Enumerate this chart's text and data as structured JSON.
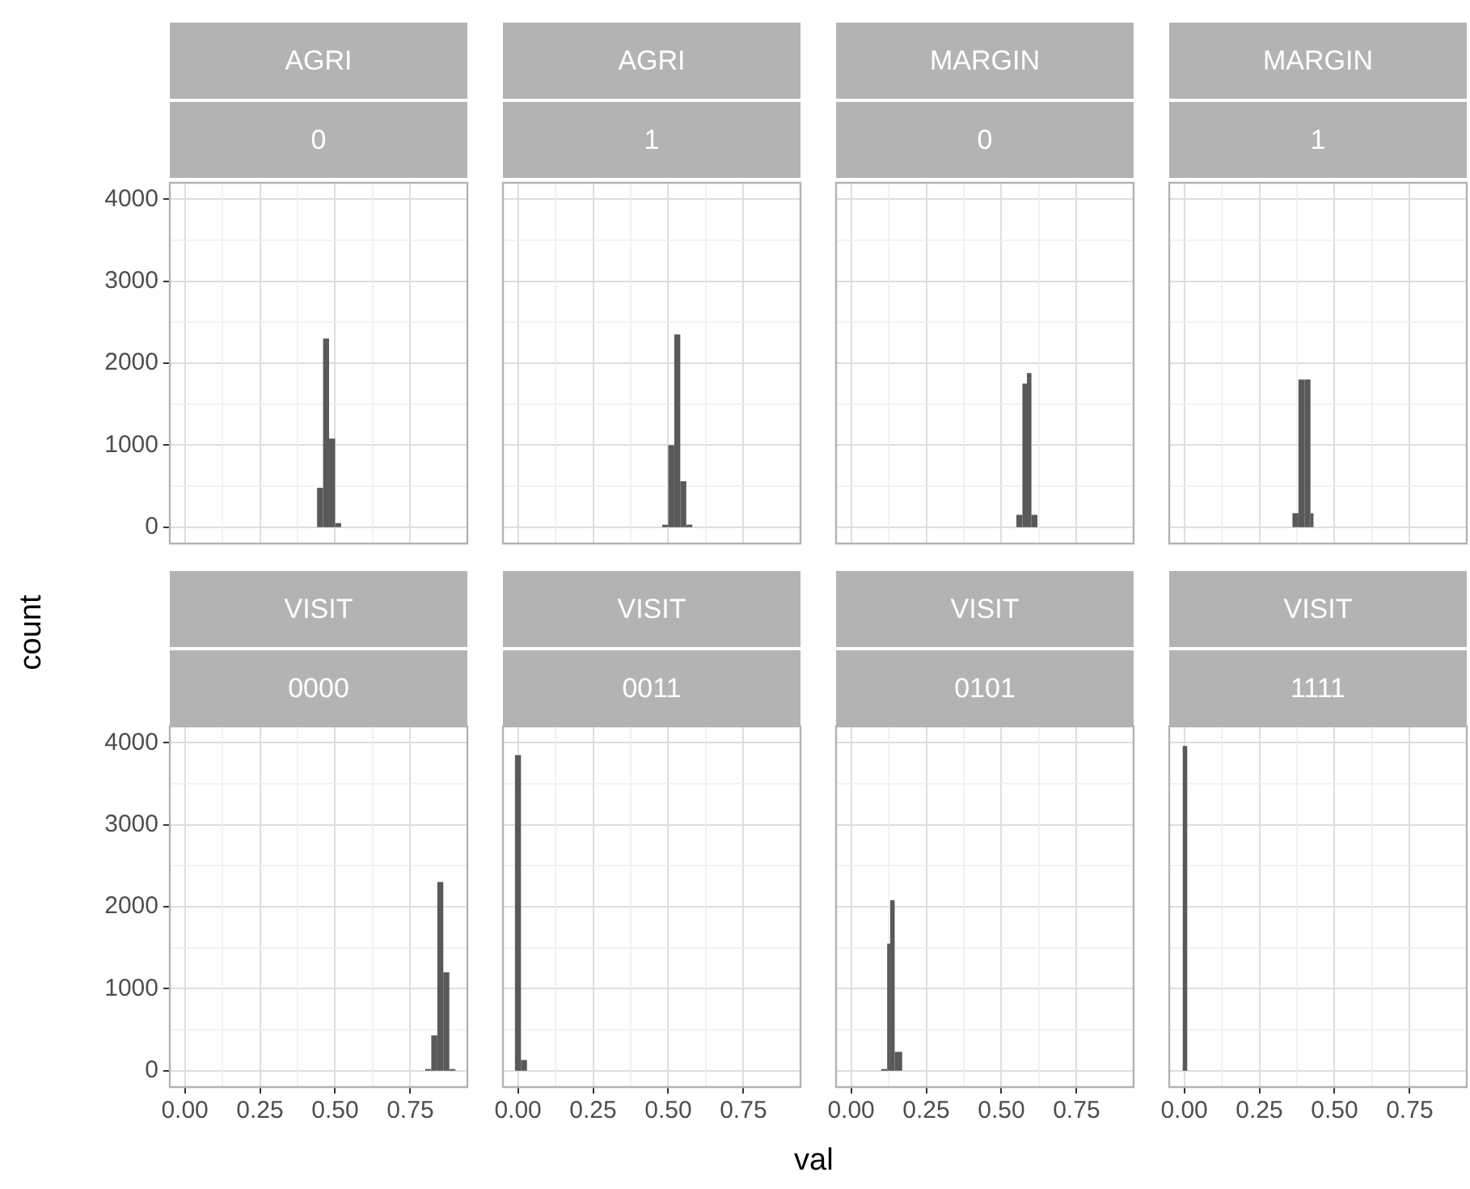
{
  "chart_data": [
    {
      "type": "histogram",
      "title": "AGRI",
      "subtitle": "0",
      "ylabel": "count",
      "bins": [
        0.44,
        0.46,
        0.48,
        0.5,
        0.52
      ],
      "values": [
        480,
        2300,
        1080,
        50
      ],
      "color": "#595959",
      "xlim": [
        -0.05,
        0.94
      ],
      "ylim": [
        -200,
        4200
      ],
      "xticks": [
        0,
        0.25,
        0.5,
        0.75
      ],
      "yticks": [
        0,
        1000,
        2000,
        3000,
        4000
      ],
      "grid": true,
      "tick_labels": "y"
    },
    {
      "type": "histogram",
      "title": "AGRI",
      "subtitle": "1",
      "bins": [
        0.48,
        0.5,
        0.52,
        0.54,
        0.56,
        0.58
      ],
      "values": [
        30,
        1000,
        2350,
        560,
        30
      ],
      "color": "#595959",
      "xlim": [
        -0.05,
        0.94
      ],
      "ylim": [
        -200,
        4200
      ],
      "xticks": [
        0,
        0.25,
        0.5,
        0.75
      ],
      "yticks": [
        0,
        1000,
        2000,
        3000,
        4000
      ],
      "grid": true,
      "tick_labels": false
    },
    {
      "type": "histogram",
      "title": "MARGIN",
      "subtitle": "0",
      "bins": [
        0.55,
        0.57,
        0.585,
        0.6,
        0.62
      ],
      "values": [
        150,
        1750,
        1880,
        150
      ],
      "color": "#595959",
      "xlim": [
        -0.05,
        0.94
      ],
      "ylim": [
        -200,
        4200
      ],
      "xticks": [
        0,
        0.25,
        0.5,
        0.75
      ],
      "yticks": [
        0,
        1000,
        2000,
        3000,
        4000
      ],
      "grid": true,
      "tick_labels": false
    },
    {
      "type": "histogram",
      "title": "MARGIN",
      "subtitle": "1",
      "bins": [
        0.36,
        0.38,
        0.4,
        0.42,
        0.43
      ],
      "values": [
        170,
        1800,
        1800,
        170
      ],
      "color": "#595959",
      "xlim": [
        -0.05,
        0.94
      ],
      "ylim": [
        -200,
        4200
      ],
      "xticks": [
        0,
        0.25,
        0.5,
        0.75
      ],
      "yticks": [
        0,
        1000,
        2000,
        3000,
        4000
      ],
      "grid": true,
      "tick_labels": false
    },
    {
      "type": "histogram",
      "title": "VISIT",
      "subtitle": "0000",
      "bins": [
        0.8,
        0.82,
        0.84,
        0.86,
        0.88,
        0.9
      ],
      "values": [
        20,
        430,
        2300,
        1200,
        20
      ],
      "color": "#595959",
      "xlim": [
        -0.05,
        0.94
      ],
      "ylim": [
        -200,
        4200
      ],
      "xticks": [
        {
          "value": 0,
          "label": "0.00"
        },
        {
          "value": 0.25,
          "label": "0.25"
        },
        {
          "value": 0.5,
          "label": "0.50"
        },
        {
          "value": 0.75,
          "label": "0.75"
        }
      ],
      "yticks": [
        0,
        1000,
        2000,
        3000,
        4000
      ],
      "grid": true
    },
    {
      "type": "histogram",
      "title": "VISIT",
      "subtitle": "0011",
      "xlabel": "val",
      "bins": [
        -0.01,
        0.01,
        0.03
      ],
      "values": [
        3850,
        130
      ],
      "color": "#595959",
      "xlim": [
        -0.05,
        0.94
      ],
      "ylim": [
        -200,
        4200
      ],
      "xticks": [
        {
          "value": 0,
          "label": "0.00"
        },
        {
          "value": 0.25,
          "label": "0.25"
        },
        {
          "value": 0.5,
          "label": "0.50"
        },
        {
          "value": 0.75,
          "label": "0.75"
        }
      ],
      "yticks": [
        0,
        1000,
        2000,
        3000,
        4000
      ],
      "grid": true,
      "tick_labels": "x"
    },
    {
      "type": "histogram",
      "title": "VISIT",
      "subtitle": "0101",
      "bins": [
        0.1,
        0.12,
        0.13,
        0.145,
        0.17
      ],
      "values": [
        20,
        1550,
        2080,
        230
      ],
      "color": "#595959",
      "xlim": [
        -0.05,
        0.94
      ],
      "ylim": [
        -200,
        4200
      ],
      "xticks": [
        {
          "value": 0,
          "label": "0.00"
        },
        {
          "value": 0.25,
          "label": "0.25"
        },
        {
          "value": 0.5,
          "label": "0.50"
        },
        {
          "value": 0.75,
          "label": "0.75"
        }
      ],
      "yticks": [
        0,
        1000,
        2000,
        3000,
        4000
      ],
      "grid": true,
      "tick_labels": "x"
    },
    {
      "type": "histogram",
      "title": "VISIT",
      "subtitle": "1111",
      "bins": [
        -0.005,
        0.01
      ],
      "values": [
        3960
      ],
      "color": "#595959",
      "xlim": [
        -0.05,
        0.94
      ],
      "ylim": [
        -200,
        4200
      ],
      "xticks": [
        {
          "value": 0,
          "label": "0.00"
        },
        {
          "value": 0.25,
          "label": "0.25"
        },
        {
          "value": 0.5,
          "label": "0.50"
        },
        {
          "value": 0.75,
          "label": "0.75"
        }
      ],
      "yticks": [
        0,
        1000,
        2000,
        3000,
        4000
      ],
      "grid": true,
      "tick_labels": "x"
    }
  ]
}
